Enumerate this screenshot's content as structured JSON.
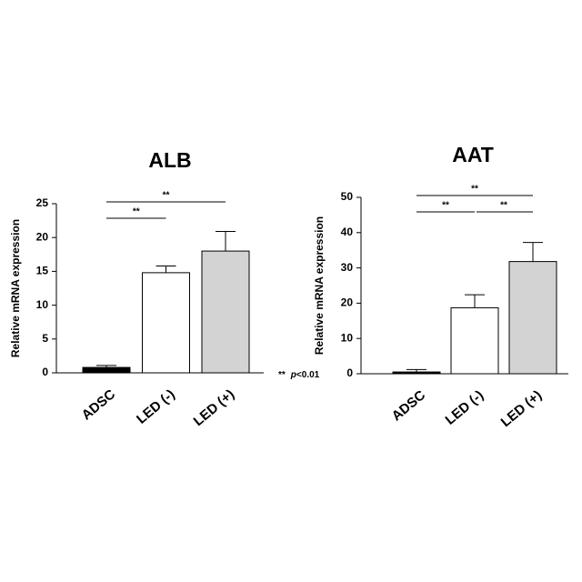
{
  "chart_data": [
    {
      "type": "bar",
      "title": "ALB",
      "y_label": "Relative mRNA expression",
      "categories": [
        "ADSC",
        "LED (-)",
        "LED (+)"
      ],
      "values": [
        0.8,
        14.8,
        18.0
      ],
      "errors": [
        0.3,
        1.0,
        2.9
      ],
      "colors": [
        "#000000",
        "#ffffff",
        "#d3d3d3"
      ],
      "ylim": [
        0,
        25
      ],
      "yticks": [
        0,
        5,
        10,
        15,
        20,
        25
      ],
      "significance": [
        {
          "between": [
            "ADSC",
            "LED (-)"
          ],
          "label": "**"
        },
        {
          "between": [
            "ADSC",
            "LED (+)"
          ],
          "label": "**"
        }
      ],
      "note": [
        "**",
        "p",
        "<0.01"
      ]
    },
    {
      "type": "bar",
      "title": "AAT",
      "y_label": "Relative mRNA expression",
      "categories": [
        "ADSC",
        "LED (-)",
        "LED (+)"
      ],
      "values": [
        0.5,
        18.7,
        31.8
      ],
      "errors": [
        0.7,
        3.7,
        5.4
      ],
      "colors": [
        "#000000",
        "#ffffff",
        "#d3d3d3"
      ],
      "ylim": [
        0,
        50
      ],
      "yticks": [
        0,
        10,
        20,
        30,
        40,
        50
      ],
      "significance": [
        {
          "between": [
            "ADSC",
            "LED (-)"
          ],
          "label": "**"
        },
        {
          "between": [
            "LED (-)",
            "LED (+)"
          ],
          "label": "**"
        },
        {
          "between": [
            "ADSC",
            "LED (+)"
          ],
          "label": "**"
        }
      ]
    }
  ]
}
